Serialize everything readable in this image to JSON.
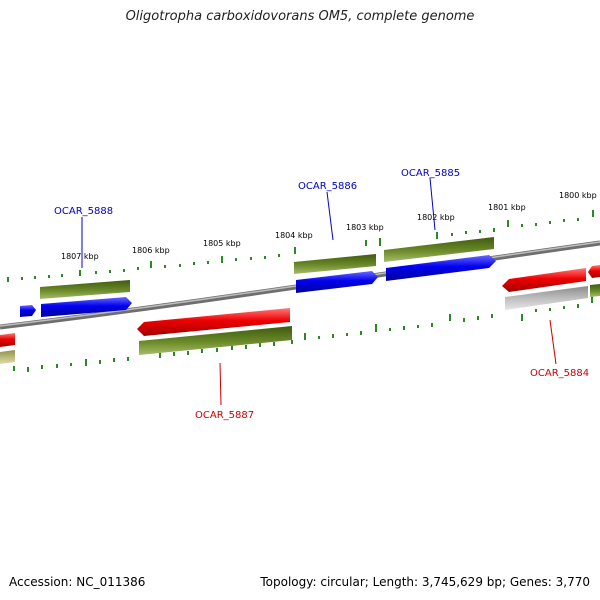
{
  "title": "Oligotropha carboxidovorans OM5, complete genome",
  "footer": {
    "accession": "Accession: NC_011386",
    "topology": "Topology: circular; Length: 3,745,629 bp; Genes: 3,770"
  },
  "colors": {
    "plus_strand_gene": "#0000ee",
    "minus_strand_gene": "#ee0000",
    "cds": "#5a7a1f",
    "other_feature": "#b0b0b0",
    "pseudo": "#b8b878",
    "backbone": "#7a7a7a",
    "ticks": "#2a8a2a"
  },
  "diagram": {
    "kbp_ticks": [
      "1807 kbp",
      "1806 kbp",
      "1805 kbp",
      "1804 kbp",
      "1803 kbp",
      "1802 kbp",
      "1801 kbp",
      "1800 kbp"
    ],
    "gene_labels": [
      {
        "text": "OCAR_5888",
        "strand": "plus"
      },
      {
        "text": "OCAR_5886",
        "strand": "plus"
      },
      {
        "text": "OCAR_5885",
        "strand": "plus"
      },
      {
        "text": "OCAR_5887",
        "strand": "minus"
      },
      {
        "text": "OCAR_5884",
        "strand": "minus"
      }
    ]
  }
}
